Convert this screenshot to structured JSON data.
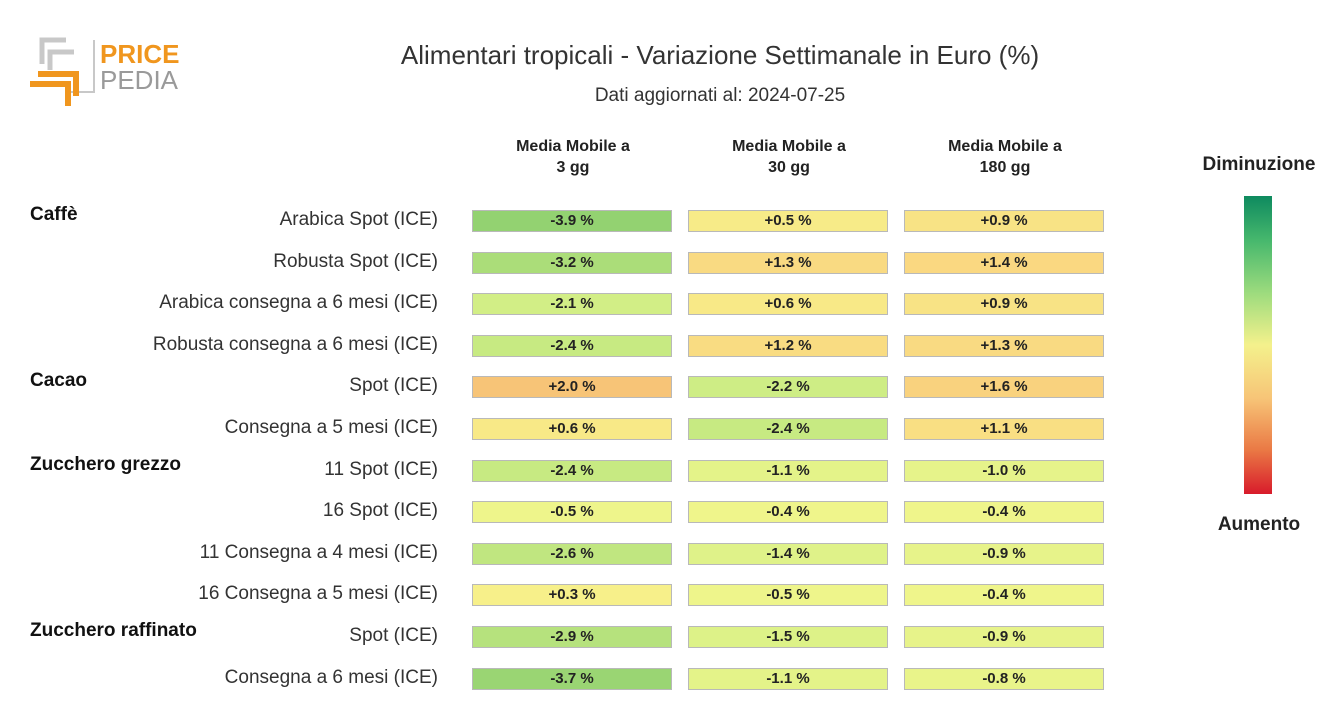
{
  "logo": {
    "word_top": "PRICE",
    "word_bottom": "PEDIA"
  },
  "chart_data": {
    "type": "table",
    "title": "Alimentari tropicali - Variazione Settimanale in Euro (%)",
    "subtitle": "Dati aggiornati al: 2024-07-25",
    "columns": [
      "Media Mobile a\n3 gg",
      "Media Mobile a\n30 gg",
      "Media Mobile a\n180 gg"
    ],
    "legend": {
      "top": "Diminuzione",
      "bottom": "Aumento"
    },
    "groups": [
      {
        "name": "Caffè",
        "rows": [
          {
            "label": "Arabica Spot (ICE)",
            "values": [
              -3.9,
              0.5,
              0.9
            ],
            "texts": [
              "-3.9 %",
              "+0.5 %",
              "+0.9 %"
            ]
          },
          {
            "label": "Robusta Spot (ICE)",
            "values": [
              -3.2,
              1.3,
              1.4
            ],
            "texts": [
              "-3.2 %",
              "+1.3 %",
              "+1.4 %"
            ]
          },
          {
            "label": "Arabica consegna a 6 mesi (ICE)",
            "values": [
              -2.1,
              0.6,
              0.9
            ],
            "texts": [
              "-2.1 %",
              "+0.6 %",
              "+0.9 %"
            ]
          },
          {
            "label": "Robusta consegna a 6 mesi (ICE)",
            "values": [
              -2.4,
              1.2,
              1.3
            ],
            "texts": [
              "-2.4 %",
              "+1.2 %",
              "+1.3 %"
            ]
          }
        ]
      },
      {
        "name": "Cacao",
        "rows": [
          {
            "label": "Spot (ICE)",
            "values": [
              2.0,
              -2.2,
              1.6
            ],
            "texts": [
              "+2.0 %",
              "-2.2 %",
              "+1.6 %"
            ]
          },
          {
            "label": "Consegna a 5 mesi (ICE)",
            "values": [
              0.6,
              -2.4,
              1.1
            ],
            "texts": [
              "+0.6 %",
              "-2.4 %",
              "+1.1 %"
            ]
          }
        ]
      },
      {
        "name": "Zucchero grezzo",
        "rows": [
          {
            "label": "11 Spot (ICE)",
            "values": [
              -2.4,
              -1.1,
              -1.0
            ],
            "texts": [
              "-2.4 %",
              "-1.1 %",
              "-1.0 %"
            ]
          },
          {
            "label": "16 Spot (ICE)",
            "values": [
              -0.5,
              -0.4,
              -0.4
            ],
            "texts": [
              "-0.5 %",
              "-0.4 %",
              "-0.4 %"
            ]
          },
          {
            "label": "11 Consegna a 4 mesi (ICE)",
            "values": [
              -2.6,
              -1.4,
              -0.9
            ],
            "texts": [
              "-2.6 %",
              "-1.4 %",
              "-0.9 %"
            ]
          },
          {
            "label": "16 Consegna a 5 mesi (ICE)",
            "values": [
              0.3,
              -0.5,
              -0.4
            ],
            "texts": [
              "+0.3 %",
              "-0.5 %",
              "-0.4 %"
            ]
          }
        ]
      },
      {
        "name": "Zucchero raffinato",
        "rows": [
          {
            "label": "Spot (ICE)",
            "values": [
              -2.9,
              -1.5,
              -0.9
            ],
            "texts": [
              "-2.9 %",
              "-1.5 %",
              "-0.9 %"
            ]
          },
          {
            "label": "Consegna a 6 mesi (ICE)",
            "values": [
              -3.7,
              -1.1,
              -0.8
            ],
            "texts": [
              "-3.7 %",
              "-1.1 %",
              "-0.8 %"
            ]
          }
        ]
      }
    ]
  }
}
